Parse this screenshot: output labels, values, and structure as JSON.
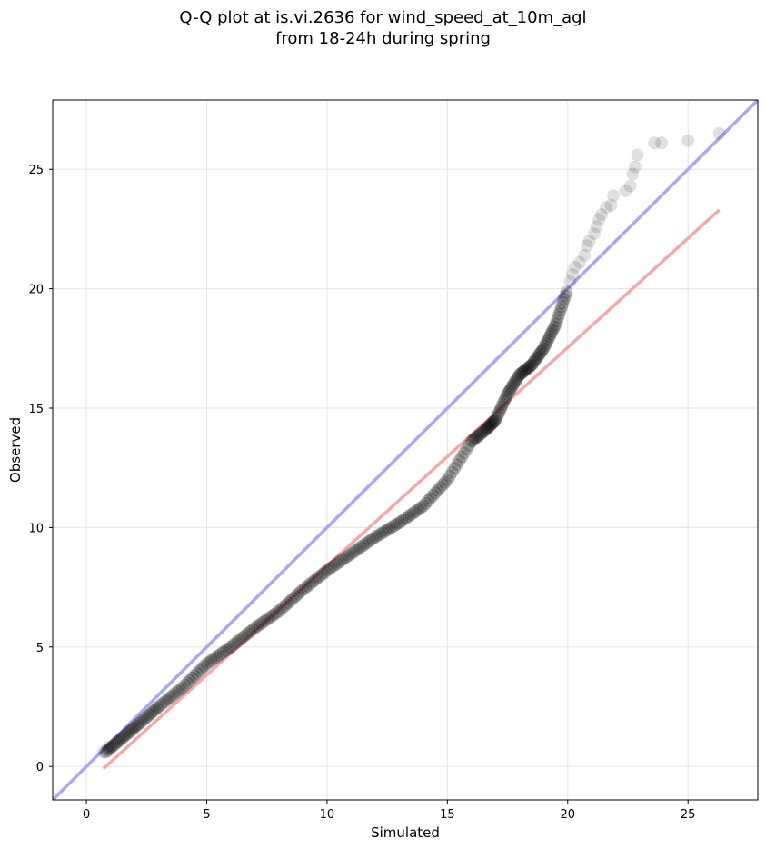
{
  "chart_data": {
    "type": "scatter",
    "title_line1": "Q-Q plot at is.vi.2636 for wind_speed_at_10m_agl",
    "title_line2": "from 18-24h during spring",
    "xlabel": "Simulated",
    "ylabel": "Observed",
    "xlim": [
      -1.4,
      27.9
    ],
    "ylim": [
      -1.4,
      27.9
    ],
    "xticks": [
      0,
      5,
      10,
      15,
      20,
      25
    ],
    "yticks": [
      0,
      5,
      10,
      15,
      20,
      25
    ],
    "grid": true,
    "colors": {
      "points": "#000000",
      "identity_line": "#a8a8f4",
      "fit_line": "#f4a8a8",
      "grid": "#e8e8e8"
    },
    "identity_line": {
      "x": [
        -1.4,
        27.9
      ],
      "y": [
        -1.4,
        27.9
      ]
    },
    "fit_line": {
      "x": [
        0.7,
        26.3
      ],
      "y": [
        -0.1,
        23.3
      ]
    },
    "quantile_curve": {
      "x": [
        0.8,
        1.5,
        2.2,
        3.0,
        4.0,
        5.0,
        6.0,
        7.0,
        8.0,
        9.0,
        10.0,
        11.0,
        12.0,
        13.0,
        14.0,
        15.0,
        16.0,
        16.6,
        17.0,
        17.5,
        18.0,
        18.5,
        19.0,
        19.5,
        20.0
      ],
      "y": [
        0.6,
        1.2,
        1.8,
        2.5,
        3.3,
        4.3,
        5.0,
        5.8,
        6.5,
        7.4,
        8.2,
        8.9,
        9.6,
        10.2,
        10.9,
        12.0,
        13.6,
        14.1,
        14.5,
        15.6,
        16.4,
        16.8,
        17.5,
        18.5,
        20.0
      ]
    },
    "tail_points": [
      {
        "x": 0.7,
        "y": 0.6
      },
      {
        "x": 0.9,
        "y": 0.8
      },
      {
        "x": 20.1,
        "y": 20.3
      },
      {
        "x": 20.2,
        "y": 20.6
      },
      {
        "x": 20.3,
        "y": 20.9
      },
      {
        "x": 20.5,
        "y": 21.1
      },
      {
        "x": 20.7,
        "y": 21.4
      },
      {
        "x": 20.8,
        "y": 21.8
      },
      {
        "x": 20.9,
        "y": 22.0
      },
      {
        "x": 21.1,
        "y": 22.3
      },
      {
        "x": 21.2,
        "y": 22.6
      },
      {
        "x": 21.3,
        "y": 22.9
      },
      {
        "x": 21.4,
        "y": 23.1
      },
      {
        "x": 21.6,
        "y": 23.4
      },
      {
        "x": 21.8,
        "y": 23.5
      },
      {
        "x": 21.9,
        "y": 23.9
      },
      {
        "x": 22.4,
        "y": 24.1
      },
      {
        "x": 22.6,
        "y": 24.3
      },
      {
        "x": 22.7,
        "y": 24.8
      },
      {
        "x": 22.8,
        "y": 25.1
      },
      {
        "x": 22.9,
        "y": 25.6
      },
      {
        "x": 23.6,
        "y": 26.1
      },
      {
        "x": 23.9,
        "y": 26.1
      },
      {
        "x": 25.0,
        "y": 26.2
      },
      {
        "x": 26.3,
        "y": 26.5
      }
    ]
  }
}
